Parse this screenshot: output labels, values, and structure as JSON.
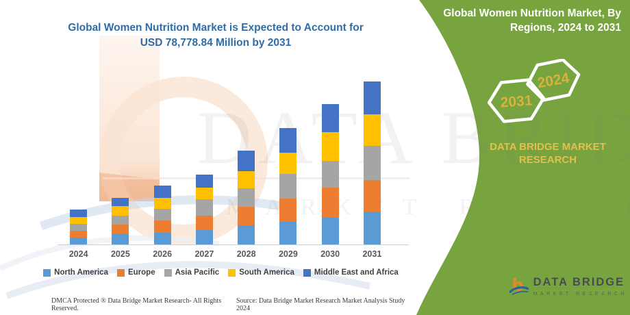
{
  "left_panel": {
    "title_line1": "Global Women Nutrition Market is Expected to Account for",
    "title_line2": "USD 78,778.84 Million by 2031",
    "footer_left": "DMCA Protected ® Data Bridge Market Research-  All Rights Reserved.",
    "footer_right": "Source: Data Bridge Market Research  Market Analysis Study 2024"
  },
  "right_panel": {
    "title_line1": "Global Women Nutrition Market, By",
    "title_line2": "Regions, 2024 to 2031",
    "badge_upper": "2024",
    "badge_lower": "2031",
    "brand_line1": "DATA BRIDGE MARKET",
    "brand_line2": "RESEARCH",
    "background_color": "#78a440",
    "badge_text_color": "#d6b23f",
    "brand_text_color": "#e3c04b"
  },
  "logo": {
    "name": "DATA BRIDGE",
    "subtitle": "MARKET RESEARCH",
    "b_color": "#e8872d",
    "swoosh_color": "#2c5f9c"
  },
  "watermark": {
    "big_text": "DATA BRIDGE",
    "small_text": "MARKET RESEARCH"
  },
  "chart_data": {
    "type": "bar",
    "stacked": true,
    "title": "Global Women Nutrition Market is Expected to Account for USD 78,778.84 Million by 2031",
    "unit": "USD Million",
    "highlight_value_2031": 78778.84,
    "categories": [
      "2024",
      "2025",
      "2026",
      "2027",
      "2028",
      "2029",
      "2030",
      "2031"
    ],
    "series": [
      {
        "name": "North America",
        "color": "#5b9bd5",
        "values": [
          3300,
          4900,
          5800,
          6850,
          9350,
          10800,
          13000,
          15600
        ]
      },
      {
        "name": "Europe",
        "color": "#ed7d31",
        "values": [
          3400,
          4800,
          5900,
          6950,
          8850,
          11250,
          14550,
          15700
        ]
      },
      {
        "name": "Asia Pacific",
        "color": "#a5a5a5",
        "values": [
          3350,
          4200,
          5500,
          8000,
          8850,
          11900,
          12800,
          16250
        ]
      },
      {
        "name": "South America",
        "color": "#ffc000",
        "values": [
          3350,
          4600,
          5500,
          5800,
          8300,
          10500,
          13800,
          15450
        ]
      },
      {
        "name": "Middle East and Africa",
        "color": "#4472c4",
        "values": [
          3400,
          3900,
          5900,
          6100,
          9900,
          11700,
          13600,
          15778.84
        ]
      }
    ],
    "totals": [
      16800,
      22400,
      28600,
      33700,
      45250,
      56150,
      67750,
      78778.84
    ],
    "y_axis_visible": false,
    "legend_position": "bottom",
    "grid": false
  }
}
